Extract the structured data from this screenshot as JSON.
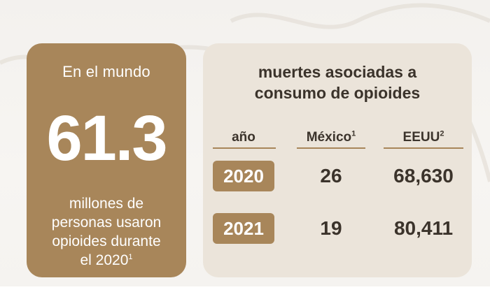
{
  "left_panel": {
    "heading": "En el mundo",
    "big_number": "61.3",
    "description_lines": [
      "millones de",
      "personas usaron",
      "opioides durante"
    ],
    "description_last": "el 2020",
    "footnote_mark": "1"
  },
  "right_panel": {
    "title_line1": "muertes asociadas a",
    "title_line2": "consumo de opioides",
    "columns": {
      "year": "año",
      "mexico": "México",
      "mexico_note": "1",
      "usa": "EEUU",
      "usa_note": "2"
    },
    "rows": [
      {
        "year": "2020",
        "mexico": "26",
        "usa": "68,630"
      },
      {
        "year": "2021",
        "mexico": "19",
        "usa": "80,411"
      }
    ]
  },
  "colors": {
    "accent": "#a8865a",
    "panel_bg": "#ebe4da",
    "text_dark": "#3b332b"
  }
}
